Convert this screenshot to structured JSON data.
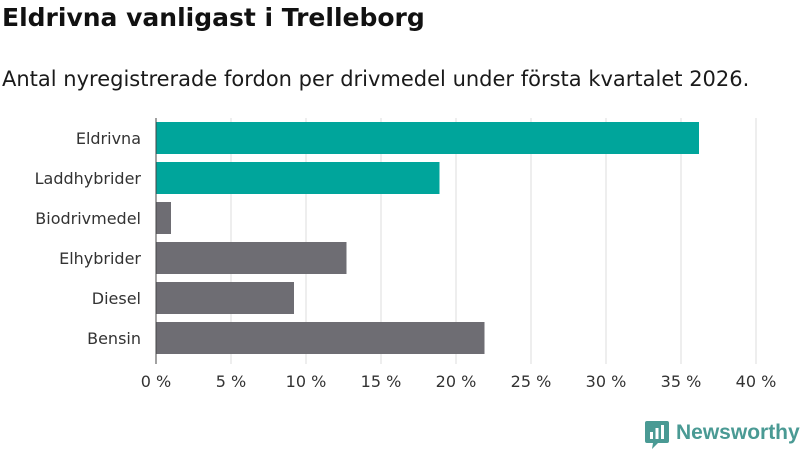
{
  "header": {
    "title": "Eldrivna vanligast i Trelleborg",
    "subtitle": "Antal nyregistrerade fordon per drivmedel under första kvartalet 2026."
  },
  "brand": {
    "name": "Newsworthy",
    "logo_icon": "bar-chart-pin-icon"
  },
  "colors": {
    "highlight": "#00a59b",
    "other": "#6e6d73",
    "brand": "#4a9a94",
    "grid": "#dddddd"
  },
  "chart_data": {
    "type": "bar",
    "orientation": "horizontal",
    "title": "Eldrivna vanligast i Trelleborg",
    "subtitle": "Antal nyregistrerade fordon per drivmedel under första kvartalet 2026.",
    "categories": [
      "Eldrivna",
      "Laddhybrider",
      "Biodrivmedel",
      "Elhybrider",
      "Diesel",
      "Bensin"
    ],
    "values": [
      36.2,
      18.9,
      1.0,
      12.7,
      9.2,
      21.9
    ],
    "highlighted": [
      true,
      true,
      false,
      false,
      false,
      false
    ],
    "xlim": [
      0,
      40
    ],
    "xticks": [
      0,
      5,
      10,
      15,
      20,
      25,
      30,
      35,
      40
    ],
    "xtick_labels": [
      "0 %",
      "5 %",
      "10 %",
      "15 %",
      "20 %",
      "25 %",
      "30 %",
      "35 %",
      "40 %"
    ],
    "xlabel": "",
    "ylabel": "",
    "grid": true,
    "legend": "none"
  }
}
